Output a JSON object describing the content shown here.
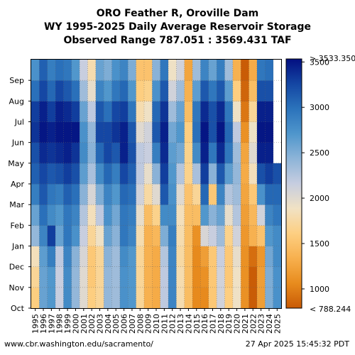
{
  "header": {
    "title_lines": [
      "ORO Feather R, Oroville Dam",
      "WY 1995-2025 Daily Average Reservoir Storage",
      "Observed Range 787.051 : 3569.431 TAF"
    ]
  },
  "footer": {
    "source": "www.cbr.washington.edu/sacramento/",
    "timestamp": "27 Apr 2025 15:45:32 PDT"
  },
  "chart_data": {
    "type": "heatmap",
    "title": "ORO Feather R, Oroville Dam WY 1995-2025 Daily Average Reservoir Storage",
    "subtitle": "Observed Range 787.051 : 3569.431 TAF",
    "x_categories": [
      "1995",
      "1996",
      "1997",
      "1998",
      "1999",
      "2000",
      "2001",
      "2002",
      "2003",
      "2004",
      "2005",
      "2006",
      "2007",
      "2008",
      "2009",
      "2010",
      "2011",
      "2012",
      "2013",
      "2014",
      "2015",
      "2016",
      "2017",
      "2018",
      "2019",
      "2020",
      "2021",
      "2022",
      "2023",
      "2024",
      "2025"
    ],
    "y_categories": [
      "Oct",
      "Nov",
      "Dec",
      "Jan",
      "Feb",
      "Mar",
      "Apr",
      "May",
      "Jun",
      "Jul",
      "Aug",
      "Sep"
    ],
    "y_order": "bottom-to-top",
    "colorbar": {
      "ticks": [
        1000,
        1500,
        2000,
        2500,
        3000,
        3500
      ],
      "max_label": "> 3533.350",
      "min_label": "< 788.244",
      "range": [
        788.244,
        3533.35
      ],
      "colors": [
        "#c85a05",
        "#e88c1e",
        "#f7b04e",
        "#fdcf82",
        "#f1e2c4",
        "#c6cde0",
        "#8db4d8",
        "#4f96cc",
        "#2b73bb",
        "#1446a3",
        "#030f80"
      ]
    },
    "grid": true,
    "values": [
      [
        1600,
        1700,
        1850,
        2400,
        2600,
        2900,
        3100,
        3200,
        3350,
        3300,
        3000,
        2750
      ],
      [
        2600,
        2600,
        2650,
        2850,
        3000,
        3150,
        3250,
        3400,
        3500,
        3450,
        3250,
        3100
      ],
      [
        2700,
        2700,
        2900,
        3300,
        2800,
        2950,
        3150,
        3350,
        3450,
        3300,
        3050,
        2900
      ],
      [
        2150,
        2150,
        2200,
        2600,
        2700,
        2900,
        3200,
        3400,
        3500,
        3450,
        3250,
        3000
      ],
      [
        2800,
        2800,
        2850,
        2950,
        2950,
        3100,
        3300,
        3450,
        3500,
        3400,
        3150,
        2950
      ],
      [
        2400,
        2400,
        2450,
        2750,
        2850,
        3000,
        3200,
        3350,
        3500,
        3300,
        3000,
        2700
      ],
      [
        2000,
        2000,
        2050,
        2150,
        2250,
        2450,
        2650,
        2800,
        2750,
        2600,
        2350,
        2150
      ],
      [
        1600,
        1550,
        1550,
        1700,
        1850,
        2050,
        2300,
        2450,
        2400,
        2200,
        1950,
        1800
      ],
      [
        1700,
        1700,
        1700,
        1900,
        2200,
        2500,
        2800,
        3050,
        3250,
        3150,
        2850,
        2600
      ],
      [
        2400,
        2400,
        2450,
        2600,
        2750,
        2850,
        3050,
        3250,
        3250,
        3000,
        2700,
        2500
      ],
      [
        2350,
        2350,
        2350,
        2450,
        2550,
        2700,
        2900,
        3150,
        3350,
        3250,
        2950,
        2750
      ],
      [
        2750,
        2750,
        2800,
        2950,
        2950,
        3050,
        3250,
        3450,
        3450,
        3300,
        3050,
        2850
      ],
      [
        2700,
        2700,
        2700,
        2850,
        2900,
        3000,
        3100,
        3200,
        3150,
        2950,
        2700,
        2500
      ],
      [
        1700,
        1700,
        1700,
        1800,
        1950,
        2100,
        2200,
        2200,
        2000,
        1800,
        1600,
        1500
      ],
      [
        1350,
        1350,
        1350,
        1350,
        1450,
        1750,
        1950,
        2150,
        2100,
        1900,
        1650,
        1500
      ],
      [
        1300,
        1300,
        1300,
        1400,
        1650,
        2000,
        2450,
        2900,
        3150,
        3050,
        2750,
        2450
      ],
      [
        2200,
        2200,
        2250,
        2500,
        2800,
        3150,
        3300,
        3400,
        3450,
        3350,
        3150,
        2950
      ],
      [
        2850,
        2850,
        2850,
        2900,
        2800,
        2750,
        2700,
        2650,
        2550,
        2350,
        2100,
        1900
      ],
      [
        1800,
        1800,
        1750,
        1800,
        1850,
        2000,
        2250,
        2550,
        2700,
        2600,
        2350,
        2100
      ],
      [
        1450,
        1450,
        1450,
        1450,
        1450,
        1500,
        1650,
        1650,
        1600,
        1450,
        1350,
        1250
      ],
      [
        1050,
        1050,
        1050,
        1100,
        1450,
        1700,
        2300,
        2800,
        3000,
        2950,
        2650,
        2350
      ],
      [
        1050,
        1100,
        1200,
        2050,
        2700,
        3050,
        3300,
        3450,
        3500,
        3400,
        3150,
        2850
      ],
      [
        1550,
        1550,
        1550,
        2150,
        2450,
        1550,
        2450,
        2950,
        3200,
        3200,
        2950,
        2600
      ],
      [
        2100,
        2100,
        2150,
        2350,
        2600,
        2850,
        3150,
        3400,
        3500,
        3400,
        3150,
        2900
      ],
      [
        1600,
        1550,
        1550,
        1650,
        1950,
        2250,
        2650,
        2950,
        3050,
        2950,
        2650,
        2350
      ],
      [
        1900,
        1900,
        1950,
        2100,
        2250,
        2350,
        2400,
        2350,
        2200,
        1900,
        1600,
        1350
      ],
      [
        1100,
        1100,
        1100,
        1150,
        1200,
        1250,
        1300,
        1250,
        1100,
        950,
        850,
        800
      ],
      [
        800,
        800,
        900,
        1350,
        1400,
        1550,
        1850,
        2000,
        1900,
        1700,
        1450,
        1300
      ],
      [
        1200,
        1200,
        1150,
        1500,
        2100,
        2750,
        3200,
        3450,
        3500,
        3450,
        3200,
        2950
      ],
      [
        2500,
        2500,
        2550,
        2700,
        2850,
        3050,
        3300,
        3450,
        3500,
        3450,
        3200,
        3000
      ],
      [
        2750,
        2750,
        2800,
        2800,
        2950,
        3050,
        3200
      ]
    ]
  }
}
